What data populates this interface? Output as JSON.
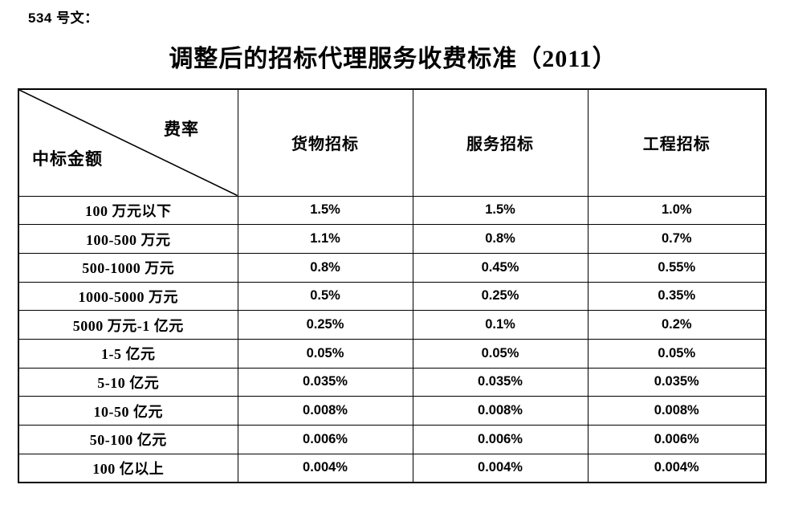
{
  "page": {
    "doc_label": "534 号文：",
    "title": "调整后的招标代理服务收费标准（2011）"
  },
  "colors": {
    "background": "#ffffff",
    "border": "#000000",
    "text": "#000000"
  },
  "table": {
    "corner": {
      "top_right": "费率",
      "bottom_left": "中标金额"
    },
    "columns": [
      "货物招标",
      "服务招标",
      "工程招标"
    ],
    "rows": [
      {
        "amount": "100 万元以下",
        "values": [
          "1.5%",
          "1.5%",
          "1.0%"
        ]
      },
      {
        "amount": "100-500 万元",
        "values": [
          "1.1%",
          "0.8%",
          "0.7%"
        ]
      },
      {
        "amount": "500-1000 万元",
        "values": [
          "0.8%",
          "0.45%",
          "0.55%"
        ]
      },
      {
        "amount": "1000-5000 万元",
        "values": [
          "0.5%",
          "0.25%",
          "0.35%"
        ]
      },
      {
        "amount": "5000 万元-1 亿元",
        "values": [
          "0.25%",
          "0.1%",
          "0.2%"
        ]
      },
      {
        "amount": "1-5 亿元",
        "values": [
          "0.05%",
          "0.05%",
          "0.05%"
        ]
      },
      {
        "amount": "5-10 亿元",
        "values": [
          "0.035%",
          "0.035%",
          "0.035%"
        ]
      },
      {
        "amount": "10-50 亿元",
        "values": [
          "0.008%",
          "0.008%",
          "0.008%"
        ]
      },
      {
        "amount": "50-100 亿元",
        "values": [
          "0.006%",
          "0.006%",
          "0.006%"
        ]
      },
      {
        "amount": "100 亿以上",
        "values": [
          "0.004%",
          "0.004%",
          "0.004%"
        ]
      }
    ]
  }
}
